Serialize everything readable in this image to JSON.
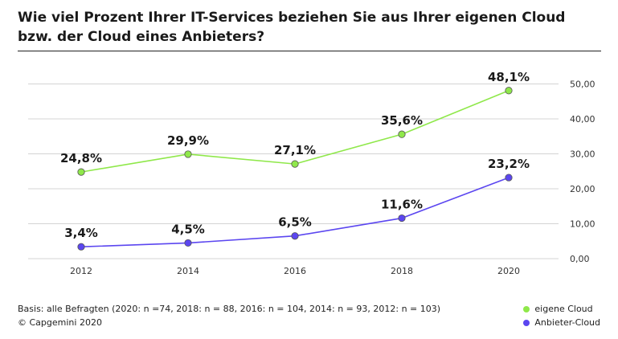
{
  "title": "Wie viel Prozent Ihrer IT-Services beziehen Sie aus Ihrer eigenen Cloud bzw. der Cloud eines Anbieters?",
  "footer": {
    "basis": "Basis: alle Befragten (2020: n =74, 2018: n = 88, 2016: n = 104, 2014: n = 93, 2012: n = 103)",
    "copyright": "© Capgemini 2020"
  },
  "chart_data": {
    "type": "line",
    "categories": [
      "2012",
      "2014",
      "2016",
      "2018",
      "2020"
    ],
    "series": [
      {
        "name": "eigene Cloud",
        "color": "#8fe84a",
        "values": [
          24.8,
          29.9,
          27.1,
          35.6,
          48.1
        ],
        "labels": [
          "24,8%",
          "29,9%",
          "27,1%",
          "35,6%",
          "48,1%"
        ]
      },
      {
        "name": "Anbieter-Cloud",
        "color": "#5b46f0",
        "values": [
          3.4,
          4.5,
          6.5,
          11.6,
          23.2
        ],
        "labels": [
          "3,4%",
          "4,5%",
          "6,5%",
          "11,6%",
          "23,2%"
        ]
      }
    ],
    "ylim": [
      0,
      50
    ],
    "yticks": [
      "0,00",
      "10,00",
      "20,00",
      "30,00",
      "40,00",
      "50,00"
    ],
    "ytick_values": [
      0,
      10,
      20,
      30,
      40,
      50
    ],
    "y_axis_position": "right",
    "grid": true,
    "legend_position": "bottom-right"
  }
}
